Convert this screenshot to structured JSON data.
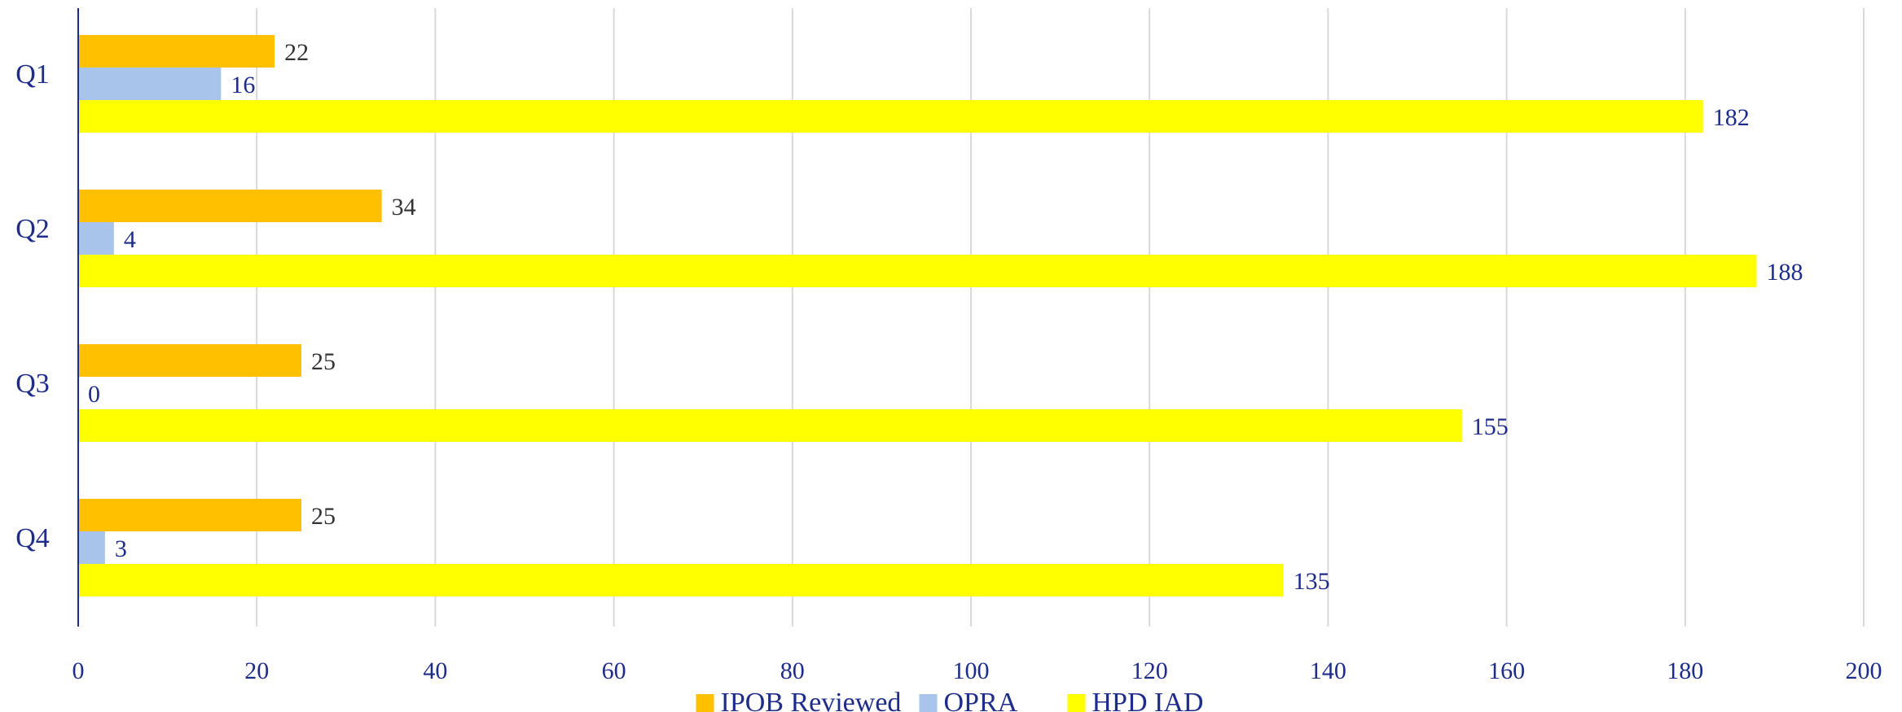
{
  "chart_data": {
    "type": "bar",
    "orientation": "horizontal",
    "categories": [
      "Q1",
      "Q2",
      "Q3",
      "Q4"
    ],
    "series": [
      {
        "name": "IPOB Reviewed",
        "color": "#FFC000",
        "values": [
          22,
          34,
          25,
          25
        ]
      },
      {
        "name": "OPRA",
        "color": "#A9C4EB",
        "values": [
          16,
          4,
          0,
          3
        ]
      },
      {
        "name": "HPD IAD",
        "color": "#FFFF00",
        "values": [
          182,
          188,
          155,
          135
        ]
      }
    ],
    "x_ticks": [
      "0",
      "20",
      "40",
      "60",
      "80",
      "100",
      "120",
      "140",
      "160",
      "180",
      "200"
    ],
    "xlim": [
      0,
      200
    ],
    "grid": true,
    "legend_position": "bottom",
    "label_color": "#1F2D8A",
    "first_series_label_color": "#333333"
  }
}
